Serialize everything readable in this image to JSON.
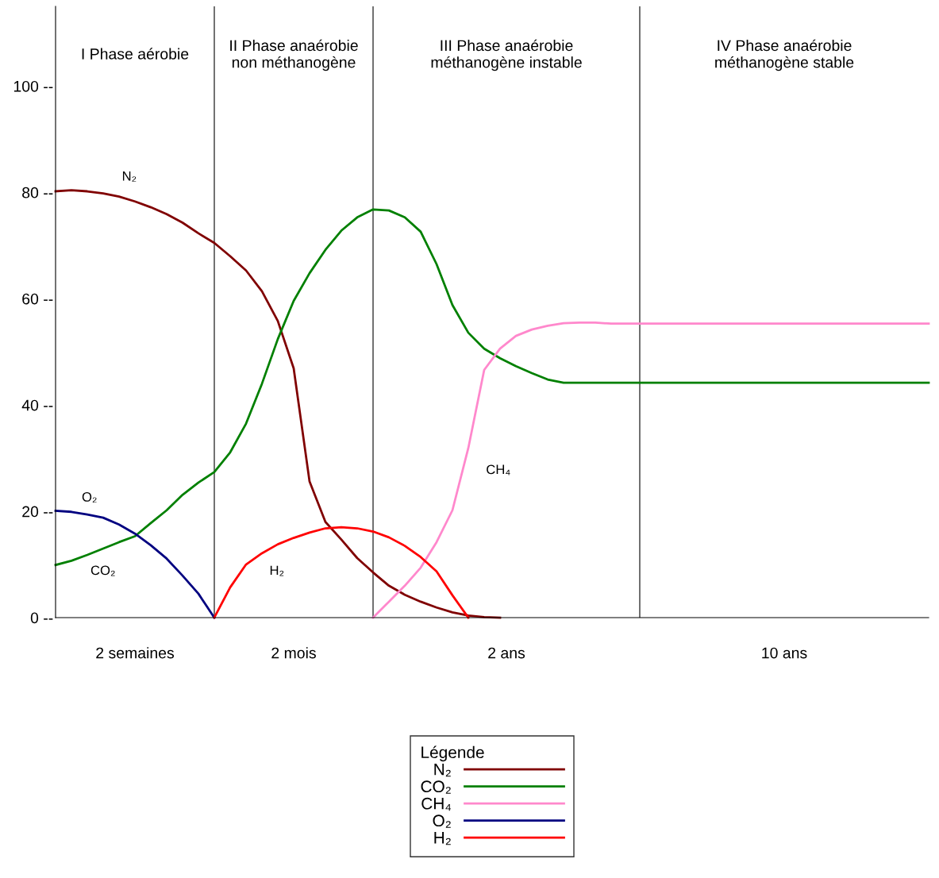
{
  "chart_data": {
    "type": "line",
    "categories": [
      null,
      null,
      null,
      null,
      null,
      null,
      null,
      null,
      null,
      null,
      null,
      null,
      null,
      null,
      null,
      null,
      null,
      null,
      null,
      null,
      null,
      null,
      null,
      null,
      null,
      null,
      null,
      null,
      null,
      null,
      null,
      null,
      null,
      null,
      null,
      null,
      null,
      null,
      null,
      null,
      null,
      null,
      null,
      null,
      null,
      null,
      null,
      null,
      null,
      null,
      null,
      null,
      null,
      null,
      null,
      null
    ],
    "series": [
      {
        "name": "N₂",
        "color": "#800000",
        "values": [
          80.2,
          80.4,
          80.2,
          79.8,
          79.2,
          78.3,
          77.2,
          75.9,
          74.3,
          72.3,
          70.5,
          68.0,
          65.3,
          61.4,
          55.8,
          46.9,
          25.6,
          18.0,
          14.7,
          11.2,
          8.5,
          6.0,
          4.3,
          3.0,
          1.9,
          1.0,
          0.4,
          0.1,
          0.0,
          null,
          null,
          null,
          null,
          null,
          null,
          null,
          null,
          null,
          null,
          null,
          null,
          null,
          null,
          null,
          null,
          null,
          null,
          null,
          null,
          null,
          null,
          null,
          null,
          null,
          null,
          null
        ]
      },
      {
        "name": "CO₂",
        "color": "#008000",
        "values": [
          9.9,
          10.7,
          11.8,
          13.0,
          14.2,
          15.3,
          17.8,
          20.2,
          23.1,
          25.4,
          27.4,
          31.1,
          36.5,
          44.0,
          52.4,
          59.6,
          64.8,
          69.2,
          72.8,
          75.3,
          76.8,
          76.6,
          75.3,
          72.6,
          66.5,
          58.8,
          53.6,
          50.6,
          48.8,
          47.3,
          46.0,
          44.8,
          44.2,
          44.2,
          44.2,
          44.2,
          44.2,
          44.2,
          44.2,
          44.2,
          44.2,
          44.2,
          44.2,
          44.2,
          44.2,
          44.2,
          44.2,
          44.2,
          44.2,
          44.2,
          44.2,
          44.2,
          44.2,
          44.2,
          44.2,
          44.2
        ]
      },
      {
        "name": "CH₄",
        "color": "#ff88cc",
        "values": [
          null,
          null,
          null,
          null,
          null,
          null,
          null,
          null,
          null,
          null,
          null,
          null,
          null,
          null,
          null,
          null,
          null,
          null,
          null,
          null,
          0,
          3.0,
          6.0,
          9.4,
          14.2,
          20.2,
          31.9,
          46.6,
          50.6,
          53.0,
          54.2,
          54.9,
          55.4,
          55.5,
          55.5,
          55.3,
          55.3,
          55.3,
          55.3,
          55.3,
          55.3,
          55.3,
          55.3,
          55.3,
          55.3,
          55.3,
          55.3,
          55.3,
          55.3,
          55.3,
          55.3,
          55.3,
          55.3,
          55.3,
          55.3,
          55.3
        ]
      },
      {
        "name": "O₂",
        "color": "#000080",
        "values": [
          20.1,
          19.9,
          19.4,
          18.8,
          17.5,
          15.8,
          13.6,
          11.1,
          7.9,
          4.5,
          0,
          null,
          null,
          null,
          null,
          null,
          null,
          null,
          null,
          null,
          null,
          null,
          null,
          null,
          null,
          null,
          null,
          null,
          null,
          null,
          null,
          null,
          null,
          null,
          null,
          null,
          null,
          null,
          null,
          null,
          null,
          null,
          null,
          null,
          null,
          null,
          null,
          null,
          null,
          null,
          null,
          null,
          null,
          null,
          null,
          null
        ]
      },
      {
        "name": "H₂",
        "color": "#ff0000",
        "values": [
          null,
          null,
          null,
          null,
          null,
          null,
          null,
          null,
          null,
          null,
          0,
          5.7,
          10.0,
          12.1,
          13.8,
          15.0,
          16.0,
          16.8,
          17.0,
          16.8,
          16.2,
          15.1,
          13.5,
          11.4,
          8.7,
          4.2,
          0,
          null,
          null,
          null,
          null,
          null,
          null,
          null,
          null,
          null,
          null,
          null,
          null,
          null,
          null,
          null,
          null,
          null,
          null,
          null,
          null,
          null,
          null,
          null,
          null,
          null,
          null,
          null,
          null,
          null
        ]
      }
    ],
    "ylim": [
      0,
      115
    ],
    "yticks": [
      {
        "value": 0,
        "label": "0 --"
      },
      {
        "value": 20,
        "label": "20 --"
      },
      {
        "value": 40,
        "label": "40 --"
      },
      {
        "value": 60,
        "label": "60 --"
      },
      {
        "value": 80,
        "label": "80 --"
      },
      {
        "value": 100,
        "label": "100 --"
      }
    ],
    "annotations": [
      "I Phase aérobie",
      "II Phase anaérobie\nnon méthanogène",
      "III Phase anaérobie\nméthanogène instable",
      "IV Phase anaérobie\nméthanogène stable",
      "2 semaines",
      "2 mois",
      "2 ans",
      "10 ans"
    ],
    "legend": "bottom",
    "grid": "x",
    "legend_title": "Légende",
    "line_style": "solid",
    "marker": "none"
  }
}
